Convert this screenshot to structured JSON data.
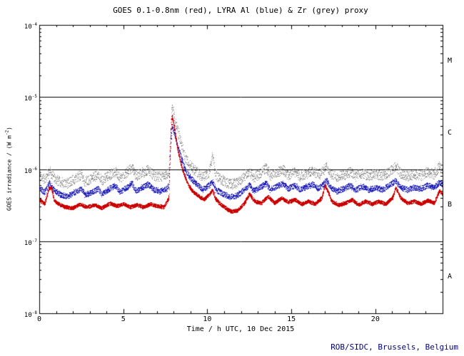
{
  "credit": {
    "text": "ROB/SIDC, Brussels, Belgium",
    "color": "#000080"
  },
  "axis_color": "#000000",
  "background_color": "#ffffff",
  "chart_data": {
    "type": "scatter",
    "title": "GOES 0.1-0.8nm (red), LYRA Al (blue) & Zr (grey) proxy",
    "xlabel": "Time / h UTC, 10 Dec 2015",
    "ylabel_parts": {
      "pre": "GOES irradiance / (W m",
      "sup": "-2",
      "post": ")"
    },
    "xlim": [
      0,
      24
    ],
    "ylim_log10": [
      -8,
      -4
    ],
    "x_ticks": [
      0,
      5,
      10,
      15,
      20
    ],
    "x_minor_tick_step": 1,
    "y_tick_base": "10",
    "y_tick_exponents": [
      -8,
      -7,
      -6,
      -5,
      -4
    ],
    "hlines_log10": [
      -7,
      -6,
      -5
    ],
    "flare_class_labels": [
      {
        "label": "M",
        "log10_y": -4.5
      },
      {
        "label": "C",
        "log10_y": -5.5
      },
      {
        "label": "B",
        "log10_y": -6.5
      },
      {
        "label": "A",
        "log10_y": -7.5
      }
    ],
    "grid": false,
    "legend": "in-title",
    "series": [
      {
        "name": "LYRA Zr proxy",
        "color": "#8c8c8c",
        "seed": 11,
        "step": 0.008,
        "jitter_log10": 0.07,
        "keypoints": [
          [
            0,
            8.5e-07
          ],
          [
            0.3,
            7.2e-07
          ],
          [
            0.6,
            9.5e-07
          ],
          [
            0.9,
            7.4e-07
          ],
          [
            1.3,
            6.6e-07
          ],
          [
            1.7,
            6.4e-07
          ],
          [
            2.1,
            7.4e-07
          ],
          [
            2.5,
            8.4e-07
          ],
          [
            2.7,
            6.8e-07
          ],
          [
            3.1,
            7.6e-07
          ],
          [
            3.5,
            8.6e-07
          ],
          [
            3.7,
            7e-07
          ],
          [
            4.1,
            8.2e-07
          ],
          [
            4.5,
            9.4e-07
          ],
          [
            4.8,
            7.6e-07
          ],
          [
            5.2,
            9e-07
          ],
          [
            5.5,
            1.05e-06
          ],
          [
            5.75,
            8e-07
          ],
          [
            6.1,
            9e-07
          ],
          [
            6.5,
            9.8e-07
          ],
          [
            6.8,
            8.2e-07
          ],
          [
            7.2,
            7.8e-07
          ],
          [
            7.6,
            8.4e-07
          ],
          [
            7.7,
            9e-07
          ],
          [
            7.8,
            3e-06
          ],
          [
            7.88,
            7.5e-06
          ],
          [
            8.0,
            6e-06
          ],
          [
            8.1,
            4.5e-06
          ],
          [
            8.4,
            2.4e-06
          ],
          [
            8.7,
            1.4e-06
          ],
          [
            9.0,
            1.1e-06
          ],
          [
            9.4,
            9e-07
          ],
          [
            9.7,
            7.8e-07
          ],
          [
            10.1,
            9e-07
          ],
          [
            10.3,
            1.6e-06
          ],
          [
            10.45,
            9e-07
          ],
          [
            10.6,
            7.8e-07
          ],
          [
            10.9,
            7e-07
          ],
          [
            11.3,
            6.2e-07
          ],
          [
            11.7,
            6.4e-07
          ],
          [
            12.1,
            7.6e-07
          ],
          [
            12.5,
            9.4e-07
          ],
          [
            12.75,
            7.6e-07
          ],
          [
            13.1,
            8.6e-07
          ],
          [
            13.5,
            1.08e-06
          ],
          [
            13.75,
            8e-07
          ],
          [
            14.1,
            9e-07
          ],
          [
            14.5,
            1e-06
          ],
          [
            14.8,
            8.2e-07
          ],
          [
            15.2,
            9.2e-07
          ],
          [
            15.5,
            8e-07
          ],
          [
            15.9,
            8.8e-07
          ],
          [
            16.3,
            9.6e-07
          ],
          [
            16.6,
            8.2e-07
          ],
          [
            16.9,
            9.6e-07
          ],
          [
            17.05,
            1.15e-06
          ],
          [
            17.3,
            8.6e-07
          ],
          [
            17.7,
            7.8e-07
          ],
          [
            18.1,
            8.4e-07
          ],
          [
            18.5,
            9.2e-07
          ],
          [
            18.8,
            8e-07
          ],
          [
            19.2,
            8.8e-07
          ],
          [
            19.6,
            8e-07
          ],
          [
            20.0,
            8.6e-07
          ],
          [
            20.4,
            8e-07
          ],
          [
            20.8,
            9.2e-07
          ],
          [
            21.2,
            1.1e-06
          ],
          [
            21.5,
            8.6e-07
          ],
          [
            21.9,
            8e-07
          ],
          [
            22.3,
            8.6e-07
          ],
          [
            22.7,
            8.2e-07
          ],
          [
            23.1,
            9.2e-07
          ],
          [
            23.5,
            8.6e-07
          ],
          [
            23.8,
            1.1e-06
          ],
          [
            24,
            1e-06
          ]
        ]
      },
      {
        "name": "LYRA Al proxy",
        "color": "#2222bb",
        "seed": 7,
        "step": 0.005,
        "jitter_log10": 0.04,
        "keypoints": [
          [
            0,
            5.5e-07
          ],
          [
            0.3,
            4.8e-07
          ],
          [
            0.6,
            6.5e-07
          ],
          [
            0.9,
            5e-07
          ],
          [
            1.3,
            4.4e-07
          ],
          [
            1.7,
            4.2e-07
          ],
          [
            2.1,
            4.8e-07
          ],
          [
            2.5,
            5.4e-07
          ],
          [
            2.7,
            4.4e-07
          ],
          [
            3.1,
            4.8e-07
          ],
          [
            3.5,
            5.4e-07
          ],
          [
            3.7,
            4.5e-07
          ],
          [
            4.1,
            5.2e-07
          ],
          [
            4.5,
            6e-07
          ],
          [
            4.8,
            4.8e-07
          ],
          [
            5.2,
            5.6e-07
          ],
          [
            5.5,
            6.4e-07
          ],
          [
            5.75,
            5e-07
          ],
          [
            6.1,
            5.6e-07
          ],
          [
            6.5,
            6.2e-07
          ],
          [
            6.8,
            5.2e-07
          ],
          [
            7.2,
            5e-07
          ],
          [
            7.6,
            5.4e-07
          ],
          [
            7.7,
            6e-07
          ],
          [
            7.8,
            2e-06
          ],
          [
            7.88,
            4e-06
          ],
          [
            8.0,
            3.4e-06
          ],
          [
            8.1,
            2.8e-06
          ],
          [
            8.4,
            1.5e-06
          ],
          [
            8.7,
            9.5e-07
          ],
          [
            9.0,
            7.5e-07
          ],
          [
            9.4,
            6.2e-07
          ],
          [
            9.7,
            5.2e-07
          ],
          [
            10.1,
            6e-07
          ],
          [
            10.3,
            6.8e-07
          ],
          [
            10.5,
            5.2e-07
          ],
          [
            10.9,
            4.6e-07
          ],
          [
            11.3,
            4.2e-07
          ],
          [
            11.7,
            4.3e-07
          ],
          [
            12.1,
            5e-07
          ],
          [
            12.5,
            6.2e-07
          ],
          [
            12.75,
            5e-07
          ],
          [
            13.1,
            5.6e-07
          ],
          [
            13.5,
            6.4e-07
          ],
          [
            13.75,
            5.2e-07
          ],
          [
            14.1,
            5.8e-07
          ],
          [
            14.5,
            6.4e-07
          ],
          [
            14.8,
            5.4e-07
          ],
          [
            15.2,
            6e-07
          ],
          [
            15.5,
            5.2e-07
          ],
          [
            15.9,
            5.8e-07
          ],
          [
            16.3,
            6.2e-07
          ],
          [
            16.6,
            5.4e-07
          ],
          [
            16.9,
            6.2e-07
          ],
          [
            17.05,
            7.2e-07
          ],
          [
            17.3,
            5.6e-07
          ],
          [
            17.7,
            5e-07
          ],
          [
            18.1,
            5.4e-07
          ],
          [
            18.5,
            6e-07
          ],
          [
            18.8,
            5.2e-07
          ],
          [
            19.2,
            5.8e-07
          ],
          [
            19.6,
            5.2e-07
          ],
          [
            20.0,
            5.6e-07
          ],
          [
            20.4,
            5.2e-07
          ],
          [
            20.8,
            6e-07
          ],
          [
            21.2,
            7e-07
          ],
          [
            21.5,
            5.6e-07
          ],
          [
            21.9,
            5.2e-07
          ],
          [
            22.3,
            5.6e-07
          ],
          [
            22.7,
            5.4e-07
          ],
          [
            23.1,
            6e-07
          ],
          [
            23.5,
            5.6e-07
          ],
          [
            23.8,
            6.6e-07
          ],
          [
            24,
            6.2e-07
          ]
        ]
      },
      {
        "name": "GOES 0.1-0.8nm",
        "color": "#cc0000",
        "seed": 3,
        "step": 0.003,
        "jitter_log10": 0.025,
        "keypoints": [
          [
            0,
            3.8e-07
          ],
          [
            0.3,
            3.3e-07
          ],
          [
            0.55,
            5.3e-07
          ],
          [
            0.7,
            5.6e-07
          ],
          [
            0.9,
            3.6e-07
          ],
          [
            1.5,
            3e-07
          ],
          [
            2.0,
            2.9e-07
          ],
          [
            2.4,
            3.3e-07
          ],
          [
            2.8,
            3e-07
          ],
          [
            3.3,
            3.2e-07
          ],
          [
            3.7,
            2.9e-07
          ],
          [
            4.2,
            3.4e-07
          ],
          [
            4.6,
            3.1e-07
          ],
          [
            5.0,
            3.3e-07
          ],
          [
            5.4,
            3e-07
          ],
          [
            5.8,
            3.2e-07
          ],
          [
            6.2,
            3e-07
          ],
          [
            6.6,
            3.3e-07
          ],
          [
            7.0,
            3.1e-07
          ],
          [
            7.4,
            3e-07
          ],
          [
            7.7,
            4e-07
          ],
          [
            7.8,
            2.5e-06
          ],
          [
            7.88,
            5.5e-06
          ],
          [
            7.95,
            4.8e-06
          ],
          [
            8.05,
            3.5e-06
          ],
          [
            8.2,
            2e-06
          ],
          [
            8.5,
            1e-06
          ],
          [
            8.8,
            6.5e-07
          ],
          [
            9.1,
            5e-07
          ],
          [
            9.5,
            4.2e-07
          ],
          [
            9.8,
            3.8e-07
          ],
          [
            10.15,
            4.6e-07
          ],
          [
            10.3,
            5.2e-07
          ],
          [
            10.45,
            4e-07
          ],
          [
            10.7,
            3.4e-07
          ],
          [
            11.0,
            3e-07
          ],
          [
            11.4,
            2.6e-07
          ],
          [
            11.8,
            2.7e-07
          ],
          [
            12.2,
            3.4e-07
          ],
          [
            12.5,
            4.6e-07
          ],
          [
            12.8,
            3.6e-07
          ],
          [
            13.2,
            3.4e-07
          ],
          [
            13.6,
            4.2e-07
          ],
          [
            14.0,
            3.4e-07
          ],
          [
            14.4,
            4e-07
          ],
          [
            14.8,
            3.5e-07
          ],
          [
            15.2,
            3.8e-07
          ],
          [
            15.6,
            3.3e-07
          ],
          [
            16.0,
            3.6e-07
          ],
          [
            16.4,
            3.3e-07
          ],
          [
            16.8,
            4e-07
          ],
          [
            17.0,
            6e-07
          ],
          [
            17.15,
            5e-07
          ],
          [
            17.4,
            3.6e-07
          ],
          [
            17.8,
            3.2e-07
          ],
          [
            18.2,
            3.4e-07
          ],
          [
            18.6,
            3.8e-07
          ],
          [
            19.0,
            3.2e-07
          ],
          [
            19.4,
            3.6e-07
          ],
          [
            19.8,
            3.3e-07
          ],
          [
            20.2,
            3.6e-07
          ],
          [
            20.6,
            3.3e-07
          ],
          [
            21.0,
            4e-07
          ],
          [
            21.2,
            5.5e-07
          ],
          [
            21.5,
            4e-07
          ],
          [
            21.9,
            3.4e-07
          ],
          [
            22.3,
            3.6e-07
          ],
          [
            22.7,
            3.3e-07
          ],
          [
            23.1,
            3.7e-07
          ],
          [
            23.5,
            3.4e-07
          ],
          [
            23.8,
            5e-07
          ],
          [
            24,
            4.5e-07
          ]
        ]
      }
    ]
  }
}
